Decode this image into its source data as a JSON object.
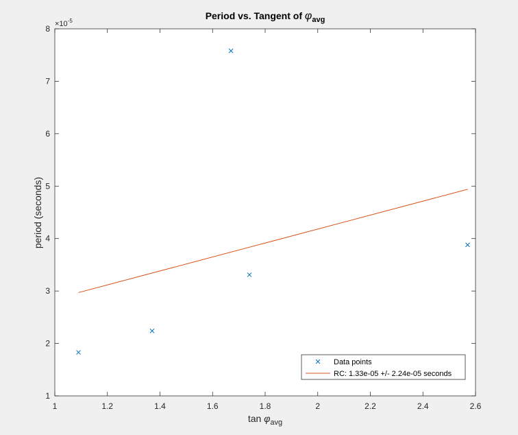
{
  "chart_data": {
    "type": "scatter",
    "title": {
      "main": "Period vs. Tangent of ",
      "symbol": "φ",
      "subscript": "avg"
    },
    "xlabel": {
      "main": "tan ",
      "symbol": "φ",
      "subscript": "avg"
    },
    "ylabel": "period (seconds)",
    "y_exponent": {
      "base": "×10",
      "power": "-5"
    },
    "xlim": [
      1,
      2.6
    ],
    "ylim": [
      1,
      8
    ],
    "x_ticks": [
      1,
      1.2,
      1.4,
      1.6,
      1.8,
      2,
      2.2,
      2.4,
      2.6
    ],
    "x_tick_labels": [
      "1",
      "1.2",
      "1.4",
      "1.6",
      "1.8",
      "2",
      "2.2",
      "2.4",
      "2.6"
    ],
    "y_ticks": [
      1,
      2,
      3,
      4,
      5,
      6,
      7,
      8
    ],
    "y_tick_labels": [
      "1",
      "2",
      "3",
      "4",
      "5",
      "6",
      "7",
      "8"
    ],
    "grid": false,
    "legend_position": "bottom-right",
    "series": [
      {
        "name": "Data points",
        "kind": "scatter",
        "marker": "x",
        "color": "#0072BD",
        "x": [
          1.09,
          1.37,
          1.67,
          1.74,
          2.57
        ],
        "y": [
          1.83,
          2.24,
          7.58,
          3.31,
          3.88
        ]
      },
      {
        "name": "RC: 1.33e-05 +/- 2.24e-05 seconds",
        "kind": "line",
        "color": "#D95319",
        "x": [
          1.09,
          2.57
        ],
        "y": [
          2.97,
          4.94
        ]
      }
    ]
  },
  "colors": {
    "figure_background": "#f0f0f0",
    "axes_background": "#ffffff",
    "axis": "#262626"
  }
}
